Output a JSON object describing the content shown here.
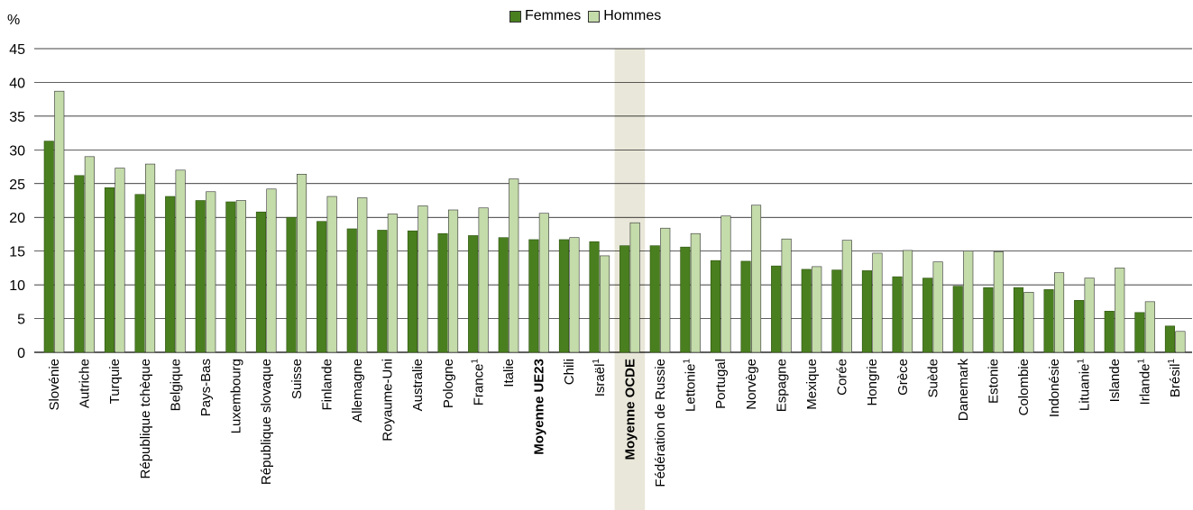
{
  "chart_data": {
    "type": "bar",
    "ylabel": "%",
    "ylim": [
      0,
      45
    ],
    "yticks": [
      0,
      5,
      10,
      15,
      20,
      25,
      30,
      35,
      40,
      45
    ],
    "grid": true,
    "legend_position": "top-center",
    "highlighted_category": "Moyenne OCDE",
    "colors": {
      "Femmes": "#4a7f1f",
      "Hommes": "#c4dbaa",
      "highlight_band": "#e9e7d9",
      "gridline": "#000000"
    },
    "categories": [
      {
        "label": "Slovénie",
        "sup": "",
        "bold": false
      },
      {
        "label": "Autriche",
        "sup": "",
        "bold": false
      },
      {
        "label": "Turquie",
        "sup": "",
        "bold": false
      },
      {
        "label": "République tchèque",
        "sup": "",
        "bold": false
      },
      {
        "label": "Belgique",
        "sup": "",
        "bold": false
      },
      {
        "label": "Pays-Bas",
        "sup": "",
        "bold": false
      },
      {
        "label": "Luxembourg",
        "sup": "",
        "bold": false
      },
      {
        "label": "République slovaque",
        "sup": "",
        "bold": false
      },
      {
        "label": "Suisse",
        "sup": "",
        "bold": false
      },
      {
        "label": "Finlande",
        "sup": "",
        "bold": false
      },
      {
        "label": "Allemagne",
        "sup": "",
        "bold": false
      },
      {
        "label": "Royaume-Uni",
        "sup": "",
        "bold": false
      },
      {
        "label": "Australie",
        "sup": "",
        "bold": false
      },
      {
        "label": "Pologne",
        "sup": "",
        "bold": false
      },
      {
        "label": "France",
        "sup": "1",
        "bold": false
      },
      {
        "label": "Italie",
        "sup": "",
        "bold": false
      },
      {
        "label": "Moyenne UE23",
        "sup": "",
        "bold": true
      },
      {
        "label": "Chili",
        "sup": "",
        "bold": false
      },
      {
        "label": "Israël",
        "sup": "1",
        "bold": false
      },
      {
        "label": "Moyenne OCDE",
        "sup": "",
        "bold": true
      },
      {
        "label": "Fédération de Russie",
        "sup": "",
        "bold": false
      },
      {
        "label": "Lettonie",
        "sup": "1",
        "bold": false
      },
      {
        "label": "Portugal",
        "sup": "",
        "bold": false
      },
      {
        "label": "Norvège",
        "sup": "",
        "bold": false
      },
      {
        "label": "Espagne",
        "sup": "",
        "bold": false
      },
      {
        "label": "Mexique",
        "sup": "",
        "bold": false
      },
      {
        "label": "Corée",
        "sup": "",
        "bold": false
      },
      {
        "label": "Hongrie",
        "sup": "",
        "bold": false
      },
      {
        "label": "Grèce",
        "sup": "",
        "bold": false
      },
      {
        "label": "Suède",
        "sup": "",
        "bold": false
      },
      {
        "label": "Danemark",
        "sup": "",
        "bold": false
      },
      {
        "label": "Estonie",
        "sup": "",
        "bold": false
      },
      {
        "label": "Colombie",
        "sup": "",
        "bold": false
      },
      {
        "label": "Indonésie",
        "sup": "",
        "bold": false
      },
      {
        "label": "Lituanie",
        "sup": "1",
        "bold": false
      },
      {
        "label": "Islande",
        "sup": "",
        "bold": false
      },
      {
        "label": "Irlande",
        "sup": "1",
        "bold": false
      },
      {
        "label": "Brésil",
        "sup": "1",
        "bold": false
      }
    ],
    "series": [
      {
        "name": "Femmes",
        "values": [
          31.3,
          26.2,
          24.4,
          23.4,
          23.1,
          22.5,
          22.3,
          20.8,
          20.0,
          19.4,
          18.3,
          18.1,
          18.0,
          17.6,
          17.3,
          17.0,
          16.7,
          16.7,
          16.4,
          15.8,
          15.8,
          15.6,
          13.6,
          13.5,
          12.8,
          12.3,
          12.2,
          12.1,
          11.2,
          11.0,
          9.8,
          9.6,
          9.6,
          9.3,
          7.7,
          6.1,
          5.9,
          3.9
        ]
      },
      {
        "name": "Hommes",
        "values": [
          38.7,
          29.0,
          27.3,
          27.9,
          27.0,
          23.8,
          22.5,
          24.2,
          26.4,
          23.1,
          22.9,
          20.5,
          21.7,
          21.1,
          21.4,
          25.7,
          20.6,
          17.0,
          14.3,
          19.2,
          18.4,
          17.6,
          20.2,
          21.8,
          16.8,
          12.7,
          16.6,
          14.7,
          15.1,
          13.4,
          15.0,
          14.9,
          8.9,
          11.8,
          11.0,
          12.5,
          7.5,
          3.1
        ]
      }
    ]
  }
}
